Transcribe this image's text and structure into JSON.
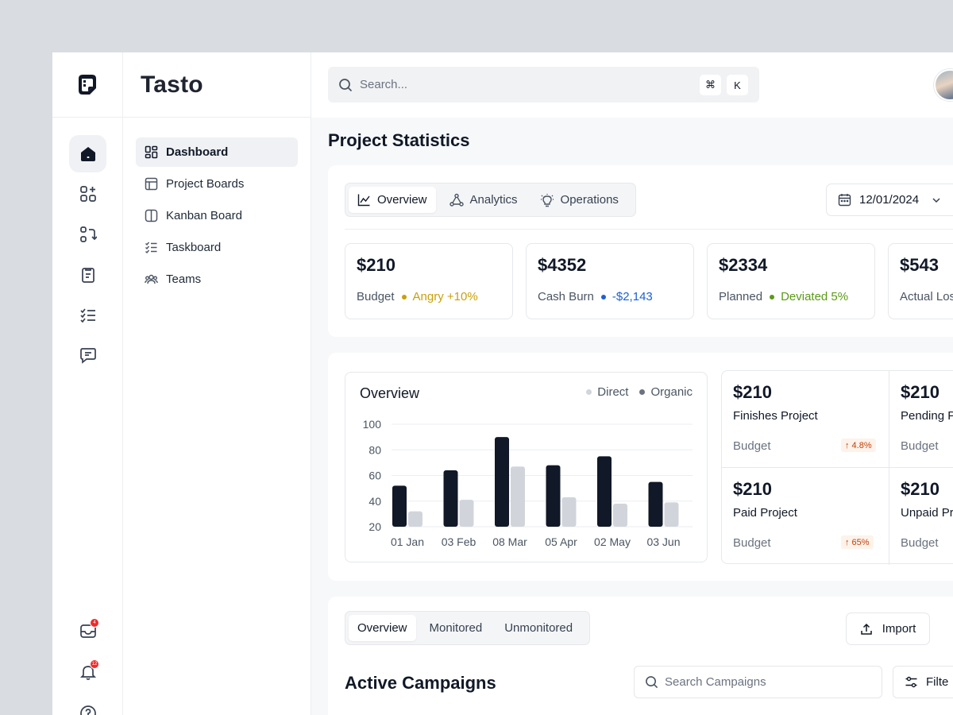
{
  "brand": {
    "name": "Tasto"
  },
  "rail": {
    "badges": {
      "inbox": "4",
      "notifications": "12"
    }
  },
  "nav": {
    "items": [
      {
        "label": "Dashboard",
        "icon": "dashboard-icon"
      },
      {
        "label": "Project Boards",
        "icon": "table-icon"
      },
      {
        "label": "Kanban Board",
        "icon": "columns-icon"
      },
      {
        "label": "Taskboard",
        "icon": "checklist-icon"
      },
      {
        "label": "Teams",
        "icon": "users-icon"
      }
    ]
  },
  "search": {
    "placeholder": "Search...",
    "key1": "⌘",
    "key2": "K"
  },
  "page": {
    "title": "Project Statistics"
  },
  "stats_tabs": [
    {
      "label": "Overview"
    },
    {
      "label": "Analytics"
    },
    {
      "label": "Operations"
    }
  ],
  "date": {
    "value": "12/01/2024"
  },
  "stats": [
    {
      "value": "$210",
      "label": "Budget",
      "delta": "Angry +10%",
      "color": "#c9a009"
    },
    {
      "value": "$4352",
      "label": "Cash Burn",
      "delta": "-$2,143",
      "color": "#1d5fd6"
    },
    {
      "value": "$2334",
      "label": "Planned",
      "delta": "Deviated 5%",
      "color": "#5b9a16"
    },
    {
      "value": "$543",
      "label": "Actual Los",
      "delta": "",
      "color": "#6b7280"
    }
  ],
  "chart_data": {
    "type": "bar",
    "title": "Overview",
    "categories": [
      "01 Jan",
      "03 Feb",
      "08 Mar",
      "05 Apr",
      "02 May",
      "03 Jun"
    ],
    "series": [
      {
        "name": "Direct",
        "values": [
          52,
          64,
          90,
          68,
          75,
          55
        ],
        "color": "#111827"
      },
      {
        "name": "Organic",
        "values": [
          32,
          41,
          67,
          43,
          38,
          39
        ],
        "color": "#d1d5db"
      }
    ],
    "yticks": [
      100,
      80,
      60,
      40,
      20
    ],
    "ylim": [
      20,
      100
    ],
    "grid": true,
    "legend": "top-right"
  },
  "mini_stats": [
    {
      "value": "$210",
      "label": "Finishes Project",
      "sub": "Budget",
      "pill": "↑ 4.8%"
    },
    {
      "value": "$210",
      "label": "Pending P",
      "sub": "Budget",
      "pill": ""
    },
    {
      "value": "$210",
      "label": "Paid Project",
      "sub": "Budget",
      "pill": "↑ 65%"
    },
    {
      "value": "$210",
      "label": "Unpaid Pr",
      "sub": "Budget",
      "pill": ""
    }
  ],
  "campaign_tabs": [
    {
      "label": "Overview"
    },
    {
      "label": "Monitored"
    },
    {
      "label": "Unmonitored"
    }
  ],
  "campaigns": {
    "import_label": "Import",
    "title": "Active Campaigns",
    "search_placeholder": "Search Campaigns",
    "filter_label": "Filte"
  }
}
